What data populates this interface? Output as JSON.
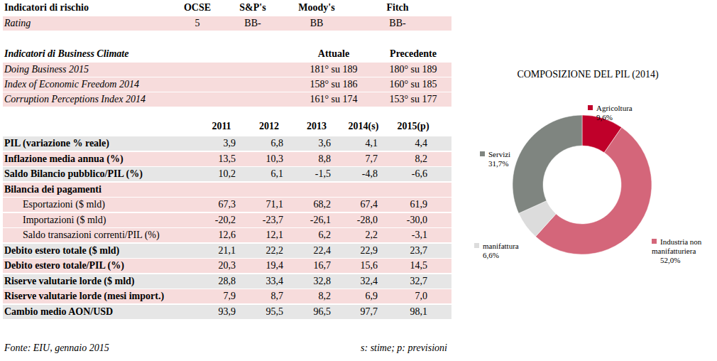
{
  "chart_data": {
    "type": "pie",
    "title": "COMPOSIZIONE DEL PIL (2014)",
    "categories": [
      "Agricoltura",
      "Industria non manifatturiera",
      "manifattura",
      "Servizi"
    ],
    "values": [
      9.6,
      52.0,
      6.6,
      31.7
    ],
    "value_labels": [
      "9,6%",
      "52,0%",
      "6,6%",
      "31,7%"
    ],
    "colors": [
      "#c0002a",
      "#d4667a",
      "#dcdcdc",
      "#7f8580"
    ],
    "data_labels": true
  },
  "tables": {
    "risk": {
      "title": "Indicatori di rischio",
      "columns": [
        "OCSE",
        "S&P's",
        "Moody's",
        "Fitch"
      ],
      "rows": [
        {
          "label": "Rating",
          "values": [
            "5",
            "BB-",
            "BB",
            "BB-"
          ]
        }
      ]
    },
    "business": {
      "title": "Indicatori di",
      "title_em": "Business Climate",
      "columns": [
        "Attuale",
        "Precedente"
      ],
      "rows": [
        {
          "label": "Doing Business 2015",
          "values": [
            "181° su 189",
            "180° su 189"
          ]
        },
        {
          "label": "Index of Economic Freedom 2014",
          "values": [
            "158° su 186",
            "160° su 185"
          ]
        },
        {
          "label": "Corruption Perceptions Index 2014",
          "values": [
            "161° su 174",
            "153° su 177"
          ]
        }
      ]
    },
    "economy": {
      "columns": [
        "2011",
        "2012",
        "2013",
        "2014(s)",
        "2015(p)"
      ],
      "rows": [
        {
          "label": "PIL (variazione % reale)",
          "values": [
            "3,9",
            "6,8",
            "3,6",
            "4,1",
            "4,4"
          ]
        },
        {
          "label": "Inflazione media annua (%)",
          "values": [
            "13,5",
            "10,3",
            "8,8",
            "7,7",
            "8,2"
          ]
        },
        {
          "label": "Saldo Bilancio pubblico/PIL (%)",
          "values": [
            "10,2",
            "6,1",
            "-1,5",
            "-4,8",
            "-6,6"
          ]
        },
        {
          "label": "Bilancia dei pagamenti",
          "children": [
            {
              "label": "Esportazioni ($ mld)",
              "values": [
                "67,3",
                "71,1",
                "68,2",
                "67,4",
                "61,9"
              ]
            },
            {
              "label": "Importazioni ($ mld)",
              "values": [
                "-20,2",
                "-23,7",
                "-26,1",
                "-28,0",
                "-30,0"
              ]
            },
            {
              "label": "Saldo transazioni correnti/PIL (%)",
              "values": [
                "12,6",
                "12,1",
                "6,2",
                "2,2",
                "-3,1"
              ]
            }
          ]
        },
        {
          "label": "Debito estero totale ($ mld)",
          "values": [
            "21,1",
            "22,2",
            "22,4",
            "22,9",
            "23,7"
          ]
        },
        {
          "label": "Debito estero totale/PIL (%)",
          "values": [
            "20,3",
            "19,4",
            "16,7",
            "15,6",
            "14,5"
          ]
        },
        {
          "label": "Riserve valutarie lorde ($ mld)",
          "values": [
            "28,8",
            "33,4",
            "32,8",
            "32,4",
            "32,7"
          ]
        },
        {
          "label": "Riserve valutarie lorde (mesi import.)",
          "values": [
            "7,9",
            "8,7",
            "8,2",
            "6,9",
            "7,0"
          ]
        },
        {
          "label": "Cambio medio AON/USD",
          "values": [
            "93,9",
            "95,5",
            "96,5",
            "97,7",
            "98,1"
          ]
        }
      ]
    }
  },
  "footer": {
    "source": "Fonte: EIU, gennaio 2015",
    "note": "s: stime; p: previsioni"
  }
}
